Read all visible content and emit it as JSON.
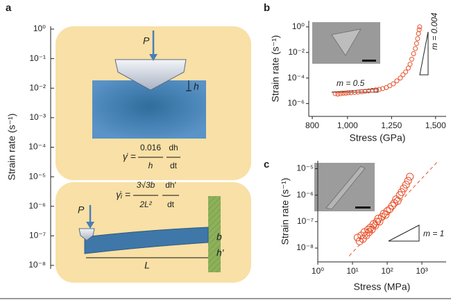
{
  "panel_a": {
    "label": "a",
    "axis_label": "Strain rate (s⁻¹)",
    "log_scale": true,
    "ylim": [
      1e-08,
      1
    ],
    "yticks": [
      {
        "value": 1,
        "label": "10⁰"
      },
      {
        "value": 0.1,
        "label": "10⁻¹"
      },
      {
        "value": 0.01,
        "label": "10⁻²"
      },
      {
        "value": 0.001,
        "label": "10⁻³"
      },
      {
        "value": 0.0001,
        "label": "10⁻⁴"
      },
      {
        "value": 1e-05,
        "label": "10⁻⁵"
      },
      {
        "value": 1e-06,
        "label": "10⁻⁶"
      },
      {
        "value": 1e-07,
        "label": "10⁻⁷"
      },
      {
        "value": 1e-08,
        "label": "10⁻⁸"
      }
    ],
    "indentation": {
      "force": "P",
      "depth": "h",
      "equation": {
        "lhs": "γ̇ =",
        "numerator": "0.016",
        "denominator": "h",
        "d_numerator": "dh",
        "d_denominator": "dt"
      }
    },
    "cantilever": {
      "force": "P",
      "thickness": "b",
      "deflection": "h′",
      "length": "L",
      "equation": {
        "lhs": "γ̇ᵢ =",
        "numerator": "3√3b",
        "denominator": "2L²",
        "d_numerator": "dh′",
        "d_denominator": "dt"
      }
    }
  },
  "chart_data": [
    {
      "type": "scatter",
      "label": "b",
      "xlabel": "Stress (GPa)",
      "ylabel": "Strain rate (s⁻¹)",
      "color": "#e8502a",
      "log_y": true,
      "log_x": false,
      "xlim": [
        780,
        1560
      ],
      "xticks": [
        800,
        {
          "value": 1000,
          "label": "1,000"
        },
        {
          "value": 1250,
          "label": "1,250"
        },
        {
          "value": 1500,
          "label": "1,500"
        }
      ],
      "ylim": [
        1e-07,
        3
      ],
      "yticks": [
        {
          "value": 1,
          "label": "10⁰"
        },
        {
          "value": 0.01,
          "label": "10⁻²"
        },
        {
          "value": 0.0001,
          "label": "10⁻⁴"
        },
        {
          "value": 1e-06,
          "label": "10⁻⁶"
        }
      ],
      "x": [
        930,
        945,
        960,
        975,
        990,
        1005,
        1020,
        1040,
        1060,
        1080,
        1100,
        1120,
        1140,
        1160,
        1180,
        1200,
        1220,
        1240,
        1260,
        1280,
        1300,
        1315,
        1330,
        1345,
        1355,
        1365,
        1375,
        1385,
        1392,
        1398,
        1403,
        1407,
        1410
      ],
      "values": [
        6e-06,
        5.5e-06,
        6e-06,
        6.5e-06,
        6.5e-06,
        7e-06,
        7e-06,
        7.5e-06,
        8e-06,
        8.5e-06,
        9e-06,
        1e-05,
        1.1e-05,
        1.2e-05,
        1.3e-05,
        1.5e-05,
        1.8e-05,
        2.5e-05,
        3.5e-05,
        6e-05,
        0.0001,
        0.00018,
        0.0003,
        0.0006,
        0.0012,
        0.003,
        0.008,
        0.02,
        0.05,
        0.12,
        0.3,
        0.6,
        1
      ],
      "annotations": [
        "m = 0.5",
        "m = 0.004"
      ]
    },
    {
      "type": "scatter",
      "label": "c",
      "xlabel": "Stress (MPa)",
      "ylabel": "Strain rate (s⁻¹)",
      "color": "#e8502a",
      "log_y": true,
      "log_x": true,
      "xlim": [
        1,
        5000
      ],
      "xticks": [
        {
          "value": 1,
          "label": "10⁰"
        },
        {
          "value": 10,
          "label": "10¹"
        },
        {
          "value": 100,
          "label": "10²"
        },
        {
          "value": 1000,
          "label": "10³"
        }
      ],
      "ylim": [
        3e-09,
        2e-05
      ],
      "yticks": [
        {
          "value": 1e-05,
          "label": "10⁻⁵"
        },
        {
          "value": 1e-06,
          "label": "10⁻⁶"
        },
        {
          "value": 1e-07,
          "label": "10⁻⁷"
        },
        {
          "value": 1e-08,
          "label": "10⁻⁸"
        }
      ],
      "x": [
        14,
        16,
        18,
        20,
        22,
        25,
        28,
        30,
        33,
        36,
        40,
        45,
        50,
        55,
        60,
        70,
        80,
        90,
        100,
        120,
        140,
        160,
        180,
        200,
        230,
        260,
        300,
        350,
        400,
        450
      ],
      "values": [
        2.5e-08,
        1.8e-08,
        3e-08,
        2.2e-08,
        4e-08,
        3e-08,
        5e-08,
        4e-08,
        6e-08,
        5e-08,
        8e-08,
        7e-08,
        1e-07,
        1.3e-07,
        1e-07,
        1.5e-07,
        2e-07,
        1.8e-07,
        2.5e-07,
        3e-07,
        4e-07,
        5e-07,
        7e-07,
        6e-07,
        1e-06,
        1.3e-06,
        1.8e-06,
        2.5e-06,
        3.5e-06,
        5e-06
      ],
      "fit_line": {
        "x": [
          8,
          3000
        ],
        "y": [
          5e-09,
          2e-05
        ]
      },
      "annotations": [
        "m = 1"
      ]
    }
  ]
}
